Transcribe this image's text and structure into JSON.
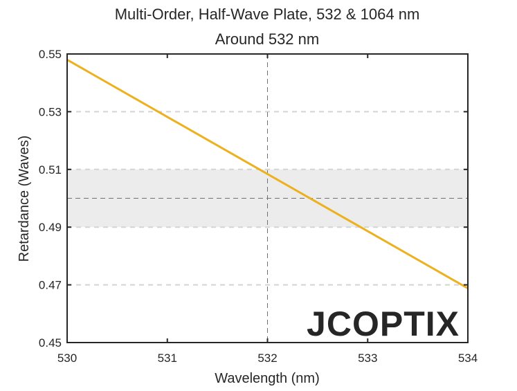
{
  "chart_data": {
    "type": "line",
    "title": "Multi-Order, Half-Wave Plate, 532 & 1064 nm",
    "subtitle": "Around 532 nm",
    "xlabel": "Wavelength (nm)",
    "ylabel": "Retardance (Waves)",
    "xlim": [
      530,
      534
    ],
    "ylim": [
      0.45,
      0.55
    ],
    "xticks": [
      530,
      531,
      532,
      533,
      534
    ],
    "yticks": [
      0.45,
      0.47,
      0.49,
      0.51,
      0.53,
      0.55
    ],
    "xtick_labels": [
      "530",
      "531",
      "532",
      "533",
      "534"
    ],
    "ytick_labels": [
      "0.45",
      "0.47",
      "0.49",
      "0.51",
      "0.53",
      "0.55"
    ],
    "grid": "horizontal dashed",
    "tolerance_band": [
      0.49,
      0.51
    ],
    "reference_y": 0.5,
    "reference_x": 532,
    "series": [
      {
        "x": [
          530,
          534
        ],
        "y": [
          0.548,
          0.4688
        ],
        "color": "#EDB120"
      }
    ],
    "watermark": "JCOPTIX"
  }
}
